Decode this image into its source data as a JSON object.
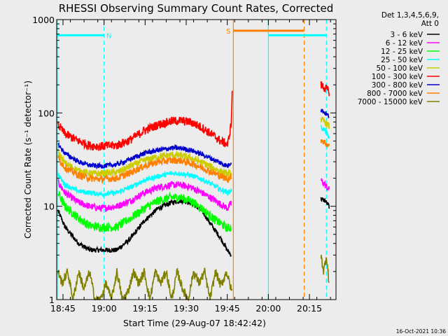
{
  "chart_data": {
    "type": "line",
    "title": "RHESSI Observing Summary Count Rates, Corrected",
    "xlabel": "Start Time (29-Aug-07 18:42:42)",
    "ylabel": "Corrected Count Rate (s⁻¹ detector⁻¹)",
    "timestamp": "16-Oct-2021 10:36",
    "x_units": "minutes after 18:42:42",
    "xlim": [
      0,
      102
    ],
    "ylim": [
      1,
      1000
    ],
    "y_scale": "log",
    "x_ticks": [
      {
        "x": 2.3,
        "label": "18:45"
      },
      {
        "x": 17.3,
        "label": "19:00"
      },
      {
        "x": 32.3,
        "label": "19:15"
      },
      {
        "x": 47.3,
        "label": "19:30"
      },
      {
        "x": 62.3,
        "label": "19:45"
      },
      {
        "x": 77.3,
        "label": "20:00"
      },
      {
        "x": 92.3,
        "label": "20:15"
      }
    ],
    "y_ticks": [
      {
        "y": 1,
        "label": "1"
      },
      {
        "y": 10,
        "label": "10"
      },
      {
        "y": 100,
        "label": "100"
      },
      {
        "y": 1000,
        "label": "1000"
      }
    ],
    "legend": {
      "position": "right",
      "header": [
        "Det 1,3,4,5,6,9,",
        "Att 0"
      ]
    },
    "series": [
      {
        "name": "3 - 6 keV",
        "color": "#000000",
        "x": [
          0.5,
          3,
          8,
          12,
          16,
          22,
          27,
          32,
          37,
          42,
          45,
          49,
          53,
          57,
          60,
          62.5,
          63.8
        ],
        "y": [
          9,
          6,
          4,
          3.4,
          3.4,
          3.4,
          4.5,
          7,
          9.5,
          11,
          11.5,
          11,
          9,
          6,
          4.5,
          3.3,
          3
        ],
        "x2": [
          96.5,
          98,
          99.5
        ],
        "y2": [
          12,
          11.5,
          10
        ]
      },
      {
        "name": "6 - 12 keV",
        "color": "#ff00ff",
        "x": [
          0.5,
          3,
          8,
          12,
          16,
          22,
          27,
          32,
          37,
          42,
          45,
          49,
          53,
          57,
          60,
          62.5,
          63.8
        ],
        "y": [
          18,
          14,
          11,
          10,
          9.5,
          10,
          11.5,
          14,
          16,
          17,
          17,
          16,
          14,
          12,
          10.5,
          9.5,
          11
        ],
        "x2": [
          96.5,
          98,
          99.5
        ],
        "y2": [
          19,
          17,
          15
        ]
      },
      {
        "name": "12 - 25 keV",
        "color": "#00ff00",
        "x": [
          0.5,
          3,
          8,
          12,
          16,
          22,
          27,
          32,
          37,
          42,
          45,
          49,
          53,
          57,
          60,
          62.5,
          63.8
        ],
        "y": [
          14,
          10,
          7.5,
          6.2,
          6,
          6,
          7.5,
          9.5,
          11.5,
          12.5,
          12.5,
          11.5,
          9.5,
          7.5,
          6.5,
          5.8,
          6
        ]
      },
      {
        "name": "25 - 50 keV",
        "color": "#00ffff",
        "x": [
          0.5,
          3,
          8,
          12,
          16,
          22,
          27,
          32,
          37,
          42,
          45,
          49,
          53,
          57,
          60,
          62.5,
          63.8
        ],
        "y": [
          22,
          17,
          14.5,
          14,
          13.5,
          14,
          16,
          19,
          21,
          22.5,
          22.5,
          21.5,
          19.5,
          17,
          15,
          14,
          15
        ],
        "x2": [
          96.5,
          98,
          99.5
        ],
        "y2": [
          70,
          65,
          55
        ]
      },
      {
        "name": "50 - 100 keV",
        "color": "#cccc00",
        "x": [
          0.5,
          3,
          8,
          12,
          16,
          22,
          27,
          32,
          37,
          42,
          45,
          49,
          53,
          57,
          60,
          62.5,
          63.8
        ],
        "y": [
          38,
          29,
          24,
          22.5,
          22.5,
          23,
          27,
          31,
          34,
          35.5,
          35,
          33,
          29.5,
          26,
          23.5,
          22,
          23
        ],
        "x2": [
          96.5,
          98,
          99.5
        ],
        "y2": [
          85,
          80,
          72
        ]
      },
      {
        "name": "100 - 300 keV",
        "color": "#ff0000",
        "x": [
          0.5,
          3,
          8,
          12,
          16,
          22,
          27,
          32,
          37,
          42,
          45,
          49,
          53,
          57,
          60,
          62.5,
          63.8,
          64.1
        ],
        "y": [
          75,
          60,
          50,
          45,
          44,
          45,
          52,
          65,
          75,
          82,
          83,
          80,
          70,
          58,
          50,
          46,
          80,
          180
        ],
        "x2": [
          96.5,
          98,
          99.5
        ],
        "y2": [
          200,
          185,
          170
        ]
      },
      {
        "name": "300 - 800 keV",
        "color": "#0000cc",
        "x": [
          0.5,
          3,
          8,
          12,
          16,
          22,
          27,
          32,
          37,
          42,
          45,
          49,
          53,
          57,
          60,
          62.5,
          63.8
        ],
        "y": [
          46,
          37,
          30,
          27.5,
          27,
          28,
          32,
          37,
          40,
          42,
          42,
          40,
          36,
          32,
          29,
          27,
          30
        ],
        "x2": [
          96.5,
          98,
          99.5
        ],
        "y2": [
          108,
          100,
          92
        ]
      },
      {
        "name": "800 - 7000 keV",
        "color": "#ff8000",
        "x": [
          0.5,
          3,
          8,
          12,
          16,
          22,
          27,
          32,
          37,
          42,
          45,
          49,
          53,
          57,
          60,
          62.5,
          63.8
        ],
        "y": [
          33,
          26,
          21.5,
          20,
          19.5,
          20,
          23,
          27,
          30,
          31,
          31,
          29,
          26,
          23,
          21,
          19.5,
          21
        ],
        "x2": [
          96.5,
          98,
          99.5
        ],
        "y2": [
          52,
          48,
          44
        ]
      },
      {
        "name": "7000 - 15000 keV",
        "color": "#808000",
        "x": [
          0.5,
          2,
          4,
          6,
          8,
          10,
          12,
          14,
          16,
          18,
          20,
          22,
          24,
          26,
          28,
          30,
          32,
          34,
          36,
          38,
          40,
          42,
          44,
          46,
          48,
          50,
          52,
          54,
          56,
          58,
          60,
          62,
          64
        ],
        "y": [
          2,
          1.5,
          2,
          1,
          2,
          1.3,
          2,
          1,
          1,
          1.5,
          1,
          2,
          1,
          1.2,
          2,
          1.5,
          2,
          1,
          2,
          1.5,
          2,
          1,
          2,
          1.3,
          1,
          2,
          1.5,
          2,
          1,
          2,
          1.4,
          2,
          1.2
        ],
        "x2": [
          96.5,
          97.5,
          98.5,
          99.5
        ],
        "y2": [
          3,
          2,
          3,
          1.5
        ]
      }
    ],
    "flags": [
      {
        "label": "N",
        "color": "#00ffff",
        "x": [
          0,
          17.3
        ],
        "y": 680
      },
      {
        "label": "S",
        "color": "#ff8000",
        "x": [
          64.5,
          90.4
        ],
        "y": 760
      },
      {
        "label": "",
        "color": "#00ffff",
        "x": [
          77.3,
          98.5
        ],
        "y": 680
      }
    ],
    "vlines": [
      {
        "x": 0.2,
        "color": "#00ffff",
        "style": "solid"
      },
      {
        "x": 17.3,
        "color": "#00ffff",
        "style": "dashed"
      },
      {
        "x": 64.5,
        "color": "#ff8000",
        "style": "solid"
      },
      {
        "x": 77.3,
        "color": "#00ffff",
        "style": "solid"
      },
      {
        "x": 90.4,
        "color": "#ff8000",
        "style": "dashed"
      },
      {
        "x": 98.5,
        "color": "#00ffff",
        "style": "dashed"
      }
    ]
  }
}
